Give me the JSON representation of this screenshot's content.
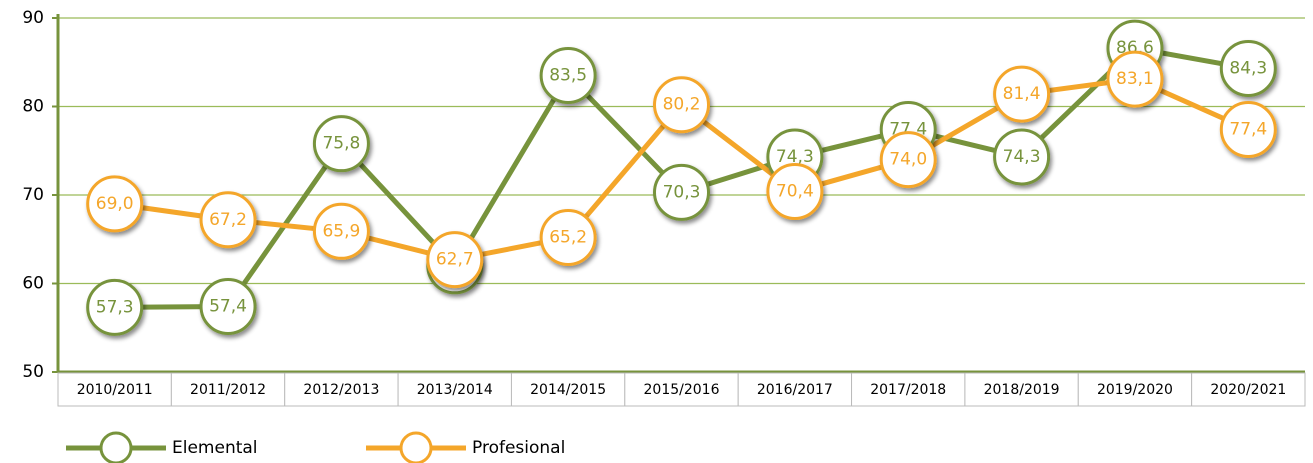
{
  "chart_data": {
    "type": "line",
    "categories": [
      "2010/2011",
      "2011/2012",
      "2012/2013",
      "2013/2014",
      "2014/2015",
      "2015/2016",
      "2016/2017",
      "2017/2018",
      "2018/2019",
      "2019/2020",
      "2020/2021"
    ],
    "series": [
      {
        "name": "Elemental",
        "color": "#77933c",
        "values": [
          57.3,
          57.4,
          75.8,
          62.0,
          83.5,
          70.3,
          74.3,
          77.4,
          74.3,
          86.6,
          84.3
        ],
        "value_labels": [
          "57,3",
          "57,4",
          "75,8",
          "62,0",
          "83,5",
          "70,3",
          "74,3",
          "77,4",
          "74,3",
          "86,6",
          "84,3"
        ]
      },
      {
        "name": "Profesional",
        "color": "#f4a62a",
        "values": [
          69.0,
          67.2,
          65.9,
          62.7,
          65.2,
          80.2,
          70.4,
          74.0,
          81.4,
          83.1,
          77.4
        ],
        "value_labels": [
          "69,0",
          "67,2",
          "65,9",
          "62,7",
          "65,2",
          "80,2",
          "70,4",
          "74,0",
          "81,4",
          "83,1",
          "77,4"
        ]
      }
    ],
    "ylim": [
      50,
      90
    ],
    "yticks": [
      50,
      60,
      70,
      80,
      90
    ],
    "grid": true,
    "legend": "bottom-left"
  }
}
